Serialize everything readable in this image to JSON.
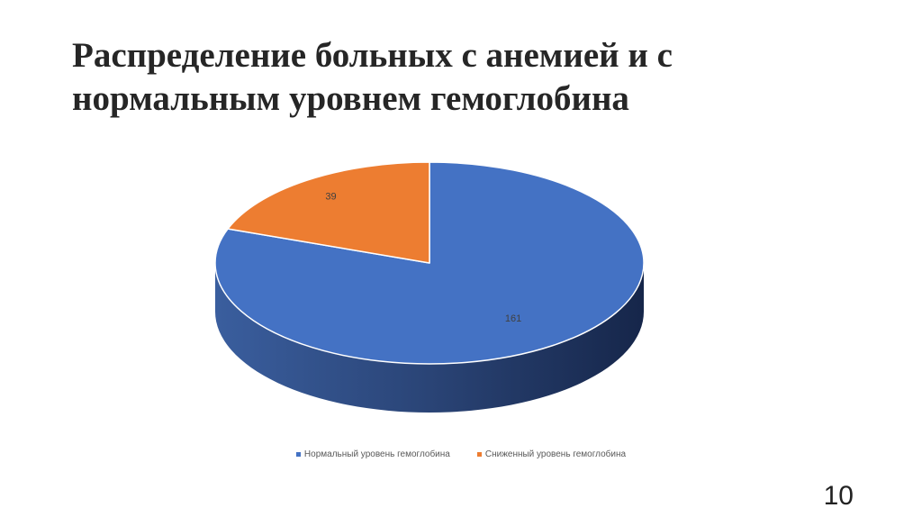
{
  "slide": {
    "title_line1": "Распределение больных с анемией и с",
    "title_line2": "нормальным уровнем гемоглобина",
    "page_number": "10"
  },
  "chart_data": {
    "type": "pie",
    "style": "3d",
    "title": "",
    "labels": [
      "Нормальный уровень гемоглобина",
      "Сниженный уровень гемоглобина"
    ],
    "values": [
      161,
      39
    ],
    "colors": [
      "#4472C4",
      "#ED7D31"
    ],
    "data_labels": [
      "161",
      "39"
    ],
    "legend_position": "bottom"
  }
}
